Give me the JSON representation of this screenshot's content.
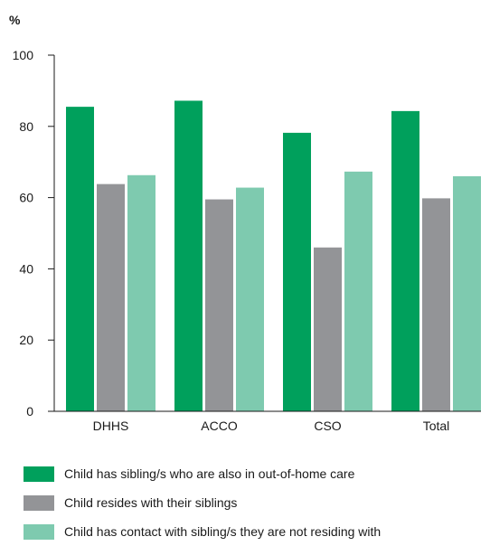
{
  "chart_data": {
    "type": "bar",
    "y_unit": "%",
    "categories": [
      "DHHS",
      "ACCO",
      "CSO",
      "Total"
    ],
    "ylim": [
      0,
      100
    ],
    "yticks": [
      0,
      20,
      40,
      60,
      80,
      100
    ],
    "grid": false,
    "legend_position": "bottom",
    "series": [
      {
        "name": "Child has sibling/s who are also in out-of-home care",
        "color": "#00a05c",
        "values": [
          85.5,
          87.2,
          78.2,
          84.3
        ]
      },
      {
        "name": "Child resides with their siblings",
        "color": "#939497",
        "values": [
          63.8,
          59.5,
          46.0,
          59.8
        ]
      },
      {
        "name": "Child has contact with sibling/s they are not residing with",
        "color": "#7ecaaf",
        "values": [
          66.3,
          62.8,
          67.3,
          66.0
        ]
      }
    ]
  }
}
